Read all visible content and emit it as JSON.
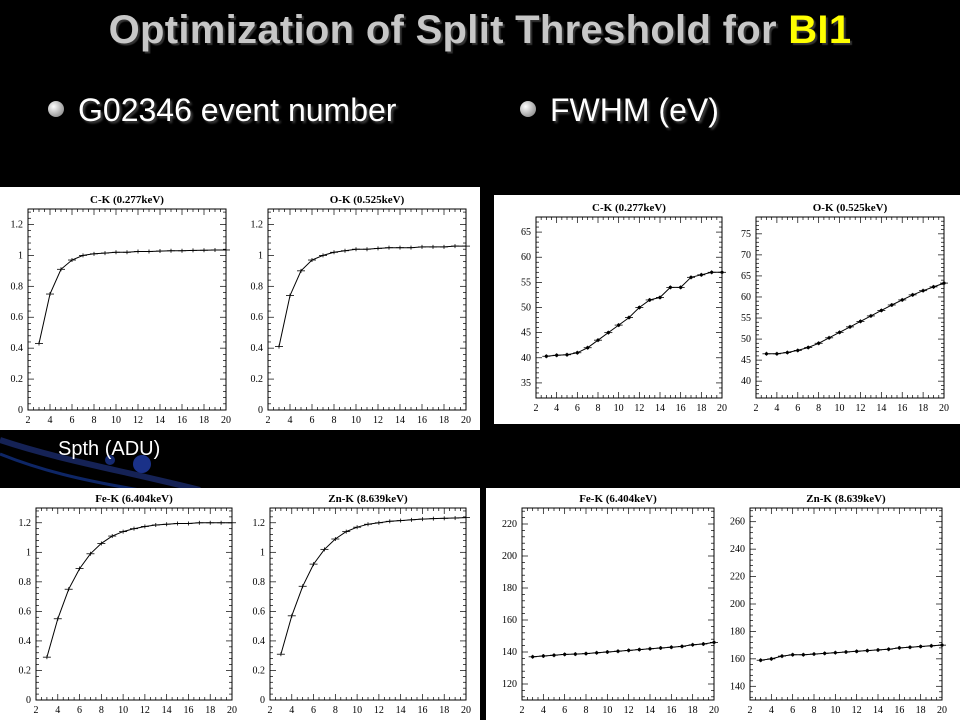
{
  "title": {
    "main": "Optimization of Split Threshold for ",
    "accent": "BI1"
  },
  "bullets": {
    "left": "G02346 event number",
    "right": "FWHM (eV)"
  },
  "xaxis_caption": "Spth (ADU)",
  "colors": {
    "background": "#000000",
    "title": "#c7c7c7",
    "accent": "#ffff00",
    "text": "#ffffff"
  },
  "chart_data": [
    {
      "id": "ev-ck",
      "type": "line",
      "title": "C-K (0.277keV)",
      "xlim": [
        2,
        20
      ],
      "ylim": [
        0,
        1.3
      ],
      "xticks": [
        2,
        4,
        6,
        8,
        10,
        12,
        14,
        16,
        18,
        20
      ],
      "yticks": [
        0,
        0.2,
        0.4,
        0.6,
        0.8,
        1,
        1.2
      ],
      "x": [
        3,
        4,
        5,
        6,
        7,
        8,
        9,
        10,
        11,
        12,
        13,
        14,
        15,
        16,
        17,
        18,
        19,
        20
      ],
      "y": [
        0.43,
        0.75,
        0.91,
        0.97,
        1.0,
        1.01,
        1.015,
        1.02,
        1.02,
        1.025,
        1.025,
        1.028,
        1.03,
        1.03,
        1.032,
        1.033,
        1.035,
        1.035
      ]
    },
    {
      "id": "ev-ok",
      "type": "line",
      "title": "O-K (0.525keV)",
      "xlim": [
        2,
        20
      ],
      "ylim": [
        0,
        1.3
      ],
      "xticks": [
        2,
        4,
        6,
        8,
        10,
        12,
        14,
        16,
        18,
        20
      ],
      "yticks": [
        0,
        0.2,
        0.4,
        0.6,
        0.8,
        1,
        1.2
      ],
      "x": [
        3,
        4,
        5,
        6,
        7,
        8,
        9,
        10,
        11,
        12,
        13,
        14,
        15,
        16,
        17,
        18,
        19,
        20
      ],
      "y": [
        0.41,
        0.74,
        0.9,
        0.97,
        1.0,
        1.02,
        1.03,
        1.04,
        1.04,
        1.045,
        1.05,
        1.05,
        1.05,
        1.055,
        1.055,
        1.055,
        1.06,
        1.06
      ]
    },
    {
      "id": "fw-ck",
      "type": "line",
      "title": "C-K (0.277keV)",
      "xlim": [
        2,
        20
      ],
      "ylim": [
        32,
        68
      ],
      "xticks": [
        2,
        4,
        6,
        8,
        10,
        12,
        14,
        16,
        18,
        20
      ],
      "yticks": [
        35,
        40,
        45,
        50,
        55,
        60,
        65
      ],
      "x": [
        3,
        4,
        5,
        6,
        7,
        8,
        9,
        10,
        11,
        12,
        13,
        14,
        15,
        16,
        17,
        18,
        19,
        20
      ],
      "y": [
        40.3,
        40.5,
        40.6,
        41.0,
        42.0,
        43.5,
        45.0,
        46.5,
        48.0,
        50.0,
        51.5,
        52.0,
        54.0,
        54.0,
        56.0,
        56.5,
        57.0,
        57.0
      ]
    },
    {
      "id": "fw-ok",
      "type": "line",
      "title": "O-K (0.525keV)",
      "xlim": [
        2,
        20
      ],
      "ylim": [
        36,
        79
      ],
      "xticks": [
        2,
        4,
        6,
        8,
        10,
        12,
        14,
        16,
        18,
        20
      ],
      "yticks": [
        40,
        45,
        50,
        55,
        60,
        65,
        70,
        75
      ],
      "x": [
        3,
        4,
        5,
        6,
        7,
        8,
        9,
        10,
        11,
        12,
        13,
        14,
        15,
        16,
        17,
        18,
        19,
        20
      ],
      "y": [
        46.5,
        46.5,
        46.8,
        47.3,
        48.0,
        49.0,
        50.3,
        51.6,
        52.9,
        54.2,
        55.5,
        56.8,
        58.1,
        59.3,
        60.5,
        61.5,
        62.4,
        63.3
      ]
    },
    {
      "id": "ev-fek",
      "type": "line",
      "title": "Fe-K (6.404keV)",
      "xlim": [
        2,
        20
      ],
      "ylim": [
        0,
        1.3
      ],
      "xticks": [
        2,
        4,
        6,
        8,
        10,
        12,
        14,
        16,
        18,
        20
      ],
      "yticks": [
        0,
        0.2,
        0.4,
        0.6,
        0.8,
        1,
        1.2
      ],
      "x": [
        3,
        4,
        5,
        6,
        7,
        8,
        9,
        10,
        11,
        12,
        13,
        14,
        15,
        16,
        17,
        18,
        19,
        20
      ],
      "y": [
        0.29,
        0.55,
        0.75,
        0.89,
        0.99,
        1.06,
        1.11,
        1.14,
        1.16,
        1.175,
        1.185,
        1.19,
        1.195,
        1.195,
        1.2,
        1.2,
        1.2,
        1.2
      ]
    },
    {
      "id": "ev-znk",
      "type": "line",
      "title": "Zn-K (8.639keV)",
      "xlim": [
        2,
        20
      ],
      "ylim": [
        0,
        1.3
      ],
      "xticks": [
        2,
        4,
        6,
        8,
        10,
        12,
        14,
        16,
        18,
        20
      ],
      "yticks": [
        0,
        0.2,
        0.4,
        0.6,
        0.8,
        1,
        1.2
      ],
      "x": [
        3,
        4,
        5,
        6,
        7,
        8,
        9,
        10,
        11,
        12,
        13,
        14,
        15,
        16,
        17,
        18,
        19,
        20
      ],
      "y": [
        0.31,
        0.57,
        0.77,
        0.92,
        1.02,
        1.09,
        1.14,
        1.17,
        1.19,
        1.2,
        1.21,
        1.215,
        1.22,
        1.225,
        1.228,
        1.23,
        1.232,
        1.235
      ]
    },
    {
      "id": "fw-fek",
      "type": "line",
      "title": "Fe-K (6.404keV)",
      "xlim": [
        2,
        20
      ],
      "ylim": [
        110,
        230
      ],
      "xticks": [
        2,
        4,
        6,
        8,
        10,
        12,
        14,
        16,
        18,
        20
      ],
      "yticks": [
        120,
        140,
        160,
        180,
        200,
        220
      ],
      "x": [
        3,
        4,
        5,
        6,
        7,
        8,
        9,
        10,
        11,
        12,
        13,
        14,
        15,
        16,
        17,
        18,
        19,
        20
      ],
      "y": [
        137,
        137.5,
        138,
        138.5,
        138.7,
        139,
        139.5,
        140,
        140.5,
        141,
        141.5,
        142,
        142.5,
        143,
        143.5,
        144.5,
        145,
        146
      ]
    },
    {
      "id": "fw-znk",
      "type": "line",
      "title": "Zn-K (8.639keV)",
      "xlim": [
        2,
        20
      ],
      "ylim": [
        130,
        270
      ],
      "xticks": [
        2,
        4,
        6,
        8,
        10,
        12,
        14,
        16,
        18,
        20
      ],
      "yticks": [
        140,
        160,
        180,
        200,
        220,
        240,
        260
      ],
      "x": [
        3,
        4,
        5,
        6,
        7,
        8,
        9,
        10,
        11,
        12,
        13,
        14,
        15,
        16,
        17,
        18,
        19,
        20
      ],
      "y": [
        159,
        160,
        162,
        163,
        163,
        163.5,
        164,
        164.5,
        165,
        165.5,
        166,
        166.5,
        167,
        168,
        168.5,
        169,
        169.5,
        170
      ]
    }
  ]
}
